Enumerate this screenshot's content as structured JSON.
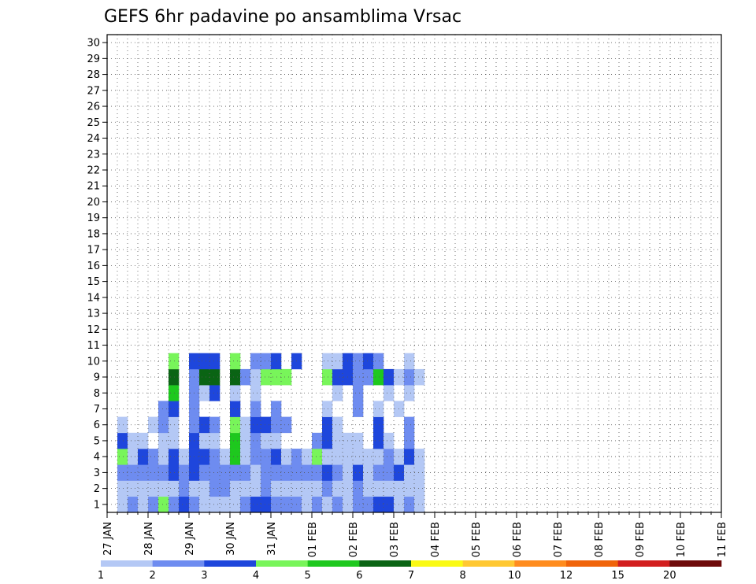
{
  "chart_data": {
    "type": "heatmap",
    "title": "GEFS 6hr padavine po ansamblima Vrsac",
    "xlabel": "",
    "ylabel": "",
    "x_tick_labels": [
      "27 JAN",
      "28 JAN",
      "29 JAN",
      "30 JAN",
      "31 JAN",
      "01 FEB",
      "02 FEB",
      "03 FEB",
      "04 FEB",
      "05 FEB",
      "06 FEB",
      "07 FEB",
      "08 FEB",
      "09 FEB",
      "10 FEB",
      "11 FEB"
    ],
    "y_tick_labels": [
      "1",
      "2",
      "3",
      "4",
      "5",
      "6",
      "7",
      "8",
      "9",
      "10",
      "11",
      "12",
      "13",
      "14",
      "15",
      "16",
      "17",
      "18",
      "19",
      "20",
      "21",
      "22",
      "23",
      "24",
      "25",
      "26",
      "27",
      "28",
      "29",
      "30"
    ],
    "xlim": [
      0,
      60
    ],
    "ylim": [
      0,
      30
    ],
    "grid": true,
    "colorbar": {
      "labels": [
        "1",
        "2",
        "3",
        "4",
        "5",
        "6",
        "7",
        "8",
        "10",
        "12",
        "15",
        "20"
      ],
      "colors": [
        "#b4c8f5",
        "#6e8cf0",
        "#1e46dc",
        "#78f55a",
        "#1ec81e",
        "#0a6414",
        "#fafa14",
        "#ffc832",
        "#ff8c1e",
        "#f0640a",
        "#d21e1e",
        "#6e0a0a"
      ]
    },
    "cells": [
      [
        1,
        1,
        1
      ],
      [
        2,
        1,
        2
      ],
      [
        3,
        1,
        1
      ],
      [
        4,
        1,
        2
      ],
      [
        5,
        1,
        4
      ],
      [
        6,
        1,
        2
      ],
      [
        7,
        1,
        3
      ],
      [
        8,
        1,
        2
      ],
      [
        9,
        1,
        1
      ],
      [
        10,
        1,
        1
      ],
      [
        11,
        1,
        1
      ],
      [
        12,
        1,
        1
      ],
      [
        13,
        1,
        2
      ],
      [
        14,
        1,
        3
      ],
      [
        15,
        1,
        3
      ],
      [
        16,
        1,
        2
      ],
      [
        17,
        1,
        2
      ],
      [
        18,
        1,
        2
      ],
      [
        19,
        1,
        1
      ],
      [
        20,
        1,
        2
      ],
      [
        21,
        1,
        1
      ],
      [
        22,
        1,
        2
      ],
      [
        23,
        1,
        1
      ],
      [
        24,
        1,
        2
      ],
      [
        25,
        1,
        2
      ],
      [
        26,
        1,
        3
      ],
      [
        27,
        1,
        3
      ],
      [
        28,
        1,
        1
      ],
      [
        29,
        1,
        2
      ],
      [
        30,
        1,
        1
      ],
      [
        1,
        2,
        1
      ],
      [
        2,
        2,
        1
      ],
      [
        3,
        2,
        1
      ],
      [
        4,
        2,
        1
      ],
      [
        5,
        2,
        1
      ],
      [
        6,
        2,
        1
      ],
      [
        7,
        2,
        2
      ],
      [
        8,
        2,
        1
      ],
      [
        9,
        2,
        1
      ],
      [
        10,
        2,
        2
      ],
      [
        11,
        2,
        2
      ],
      [
        12,
        2,
        1
      ],
      [
        13,
        2,
        1
      ],
      [
        14,
        2,
        1
      ],
      [
        15,
        2,
        2
      ],
      [
        16,
        2,
        1
      ],
      [
        17,
        2,
        1
      ],
      [
        18,
        2,
        1
      ],
      [
        19,
        2,
        1
      ],
      [
        20,
        2,
        1
      ],
      [
        21,
        2,
        2
      ],
      [
        22,
        2,
        1
      ],
      [
        23,
        2,
        1
      ],
      [
        24,
        2,
        2
      ],
      [
        25,
        2,
        1
      ],
      [
        26,
        2,
        1
      ],
      [
        27,
        2,
        1
      ],
      [
        28,
        2,
        1
      ],
      [
        29,
        2,
        1
      ],
      [
        30,
        2,
        1
      ],
      [
        1,
        3,
        2
      ],
      [
        2,
        3,
        2
      ],
      [
        3,
        3,
        2
      ],
      [
        4,
        3,
        2
      ],
      [
        5,
        3,
        2
      ],
      [
        6,
        3,
        3
      ],
      [
        7,
        3,
        2
      ],
      [
        8,
        3,
        3
      ],
      [
        9,
        3,
        2
      ],
      [
        10,
        3,
        2
      ],
      [
        11,
        3,
        2
      ],
      [
        12,
        3,
        2
      ],
      [
        13,
        3,
        2
      ],
      [
        14,
        3,
        1
      ],
      [
        15,
        3,
        2
      ],
      [
        16,
        3,
        2
      ],
      [
        17,
        3,
        2
      ],
      [
        18,
        3,
        2
      ],
      [
        19,
        3,
        2
      ],
      [
        20,
        3,
        2
      ],
      [
        21,
        3,
        3
      ],
      [
        22,
        3,
        2
      ],
      [
        23,
        3,
        1
      ],
      [
        24,
        3,
        3
      ],
      [
        25,
        3,
        1
      ],
      [
        26,
        3,
        2
      ],
      [
        27,
        3,
        2
      ],
      [
        28,
        3,
        3
      ],
      [
        29,
        3,
        1
      ],
      [
        30,
        3,
        1
      ],
      [
        1,
        4,
        4
      ],
      [
        2,
        4,
        1
      ],
      [
        3,
        4,
        3
      ],
      [
        4,
        4,
        2
      ],
      [
        5,
        4,
        1
      ],
      [
        6,
        4,
        3
      ],
      [
        7,
        4,
        1
      ],
      [
        8,
        4,
        3
      ],
      [
        9,
        4,
        3
      ],
      [
        10,
        4,
        2
      ],
      [
        11,
        4,
        1
      ],
      [
        12,
        4,
        5
      ],
      [
        13,
        4,
        1
      ],
      [
        14,
        4,
        2
      ],
      [
        15,
        4,
        2
      ],
      [
        16,
        4,
        3
      ],
      [
        17,
        4,
        1
      ],
      [
        18,
        4,
        2
      ],
      [
        19,
        4,
        1
      ],
      [
        20,
        4,
        4
      ],
      [
        21,
        4,
        1
      ],
      [
        22,
        4,
        1
      ],
      [
        23,
        4,
        1
      ],
      [
        24,
        4,
        1
      ],
      [
        25,
        4,
        1
      ],
      [
        26,
        4,
        1
      ],
      [
        27,
        4,
        2
      ],
      [
        28,
        4,
        1
      ],
      [
        29,
        4,
        3
      ],
      [
        30,
        4,
        1
      ],
      [
        1,
        5,
        3
      ],
      [
        2,
        5,
        1
      ],
      [
        3,
        5,
        1
      ],
      [
        5,
        5,
        1
      ],
      [
        6,
        5,
        1
      ],
      [
        8,
        5,
        3
      ],
      [
        9,
        5,
        1
      ],
      [
        10,
        5,
        1
      ],
      [
        12,
        5,
        5
      ],
      [
        13,
        5,
        1
      ],
      [
        14,
        5,
        2
      ],
      [
        15,
        5,
        1
      ],
      [
        16,
        5,
        1
      ],
      [
        20,
        5,
        2
      ],
      [
        21,
        5,
        3
      ],
      [
        22,
        5,
        1
      ],
      [
        23,
        5,
        1
      ],
      [
        24,
        5,
        1
      ],
      [
        26,
        5,
        3
      ],
      [
        27,
        5,
        1
      ],
      [
        29,
        5,
        2
      ],
      [
        1,
        6,
        1
      ],
      [
        4,
        6,
        1
      ],
      [
        5,
        6,
        2
      ],
      [
        6,
        6,
        1
      ],
      [
        8,
        6,
        2
      ],
      [
        9,
        6,
        3
      ],
      [
        10,
        6,
        2
      ],
      [
        12,
        6,
        4
      ],
      [
        13,
        6,
        1
      ],
      [
        14,
        6,
        3
      ],
      [
        15,
        6,
        3
      ],
      [
        16,
        6,
        2
      ],
      [
        17,
        6,
        2
      ],
      [
        21,
        6,
        3
      ],
      [
        22,
        6,
        1
      ],
      [
        26,
        6,
        3
      ],
      [
        29,
        6,
        2
      ],
      [
        5,
        7,
        2
      ],
      [
        6,
        7,
        3
      ],
      [
        8,
        7,
        2
      ],
      [
        12,
        7,
        3
      ],
      [
        14,
        7,
        2
      ],
      [
        16,
        7,
        2
      ],
      [
        21,
        7,
        1
      ],
      [
        24,
        7,
        2
      ],
      [
        26,
        7,
        1
      ],
      [
        28,
        7,
        1
      ],
      [
        6,
        8,
        5
      ],
      [
        8,
        8,
        2
      ],
      [
        9,
        8,
        1
      ],
      [
        10,
        8,
        3
      ],
      [
        12,
        8,
        1
      ],
      [
        14,
        8,
        1
      ],
      [
        22,
        8,
        1
      ],
      [
        24,
        8,
        2
      ],
      [
        27,
        8,
        1
      ],
      [
        29,
        8,
        1
      ],
      [
        6,
        9,
        6
      ],
      [
        8,
        9,
        2
      ],
      [
        9,
        9,
        6
      ],
      [
        10,
        9,
        6
      ],
      [
        12,
        9,
        6
      ],
      [
        13,
        9,
        2
      ],
      [
        14,
        9,
        1
      ],
      [
        15,
        9,
        4
      ],
      [
        16,
        9,
        4
      ],
      [
        17,
        9,
        4
      ],
      [
        21,
        9,
        4
      ],
      [
        22,
        9,
        3
      ],
      [
        23,
        9,
        3
      ],
      [
        24,
        9,
        2
      ],
      [
        25,
        9,
        2
      ],
      [
        26,
        9,
        5
      ],
      [
        27,
        9,
        3
      ],
      [
        28,
        9,
        1
      ],
      [
        29,
        9,
        2
      ],
      [
        30,
        9,
        1
      ],
      [
        6,
        10,
        4
      ],
      [
        8,
        10,
        3
      ],
      [
        9,
        10,
        3
      ],
      [
        10,
        10,
        3
      ],
      [
        12,
        10,
        4
      ],
      [
        14,
        10,
        2
      ],
      [
        15,
        10,
        2
      ],
      [
        16,
        10,
        3
      ],
      [
        18,
        10,
        3
      ],
      [
        21,
        10,
        1
      ],
      [
        22,
        10,
        1
      ],
      [
        23,
        10,
        3
      ],
      [
        24,
        10,
        2
      ],
      [
        25,
        10,
        3
      ],
      [
        26,
        10,
        2
      ],
      [
        29,
        10,
        1
      ]
    ]
  }
}
